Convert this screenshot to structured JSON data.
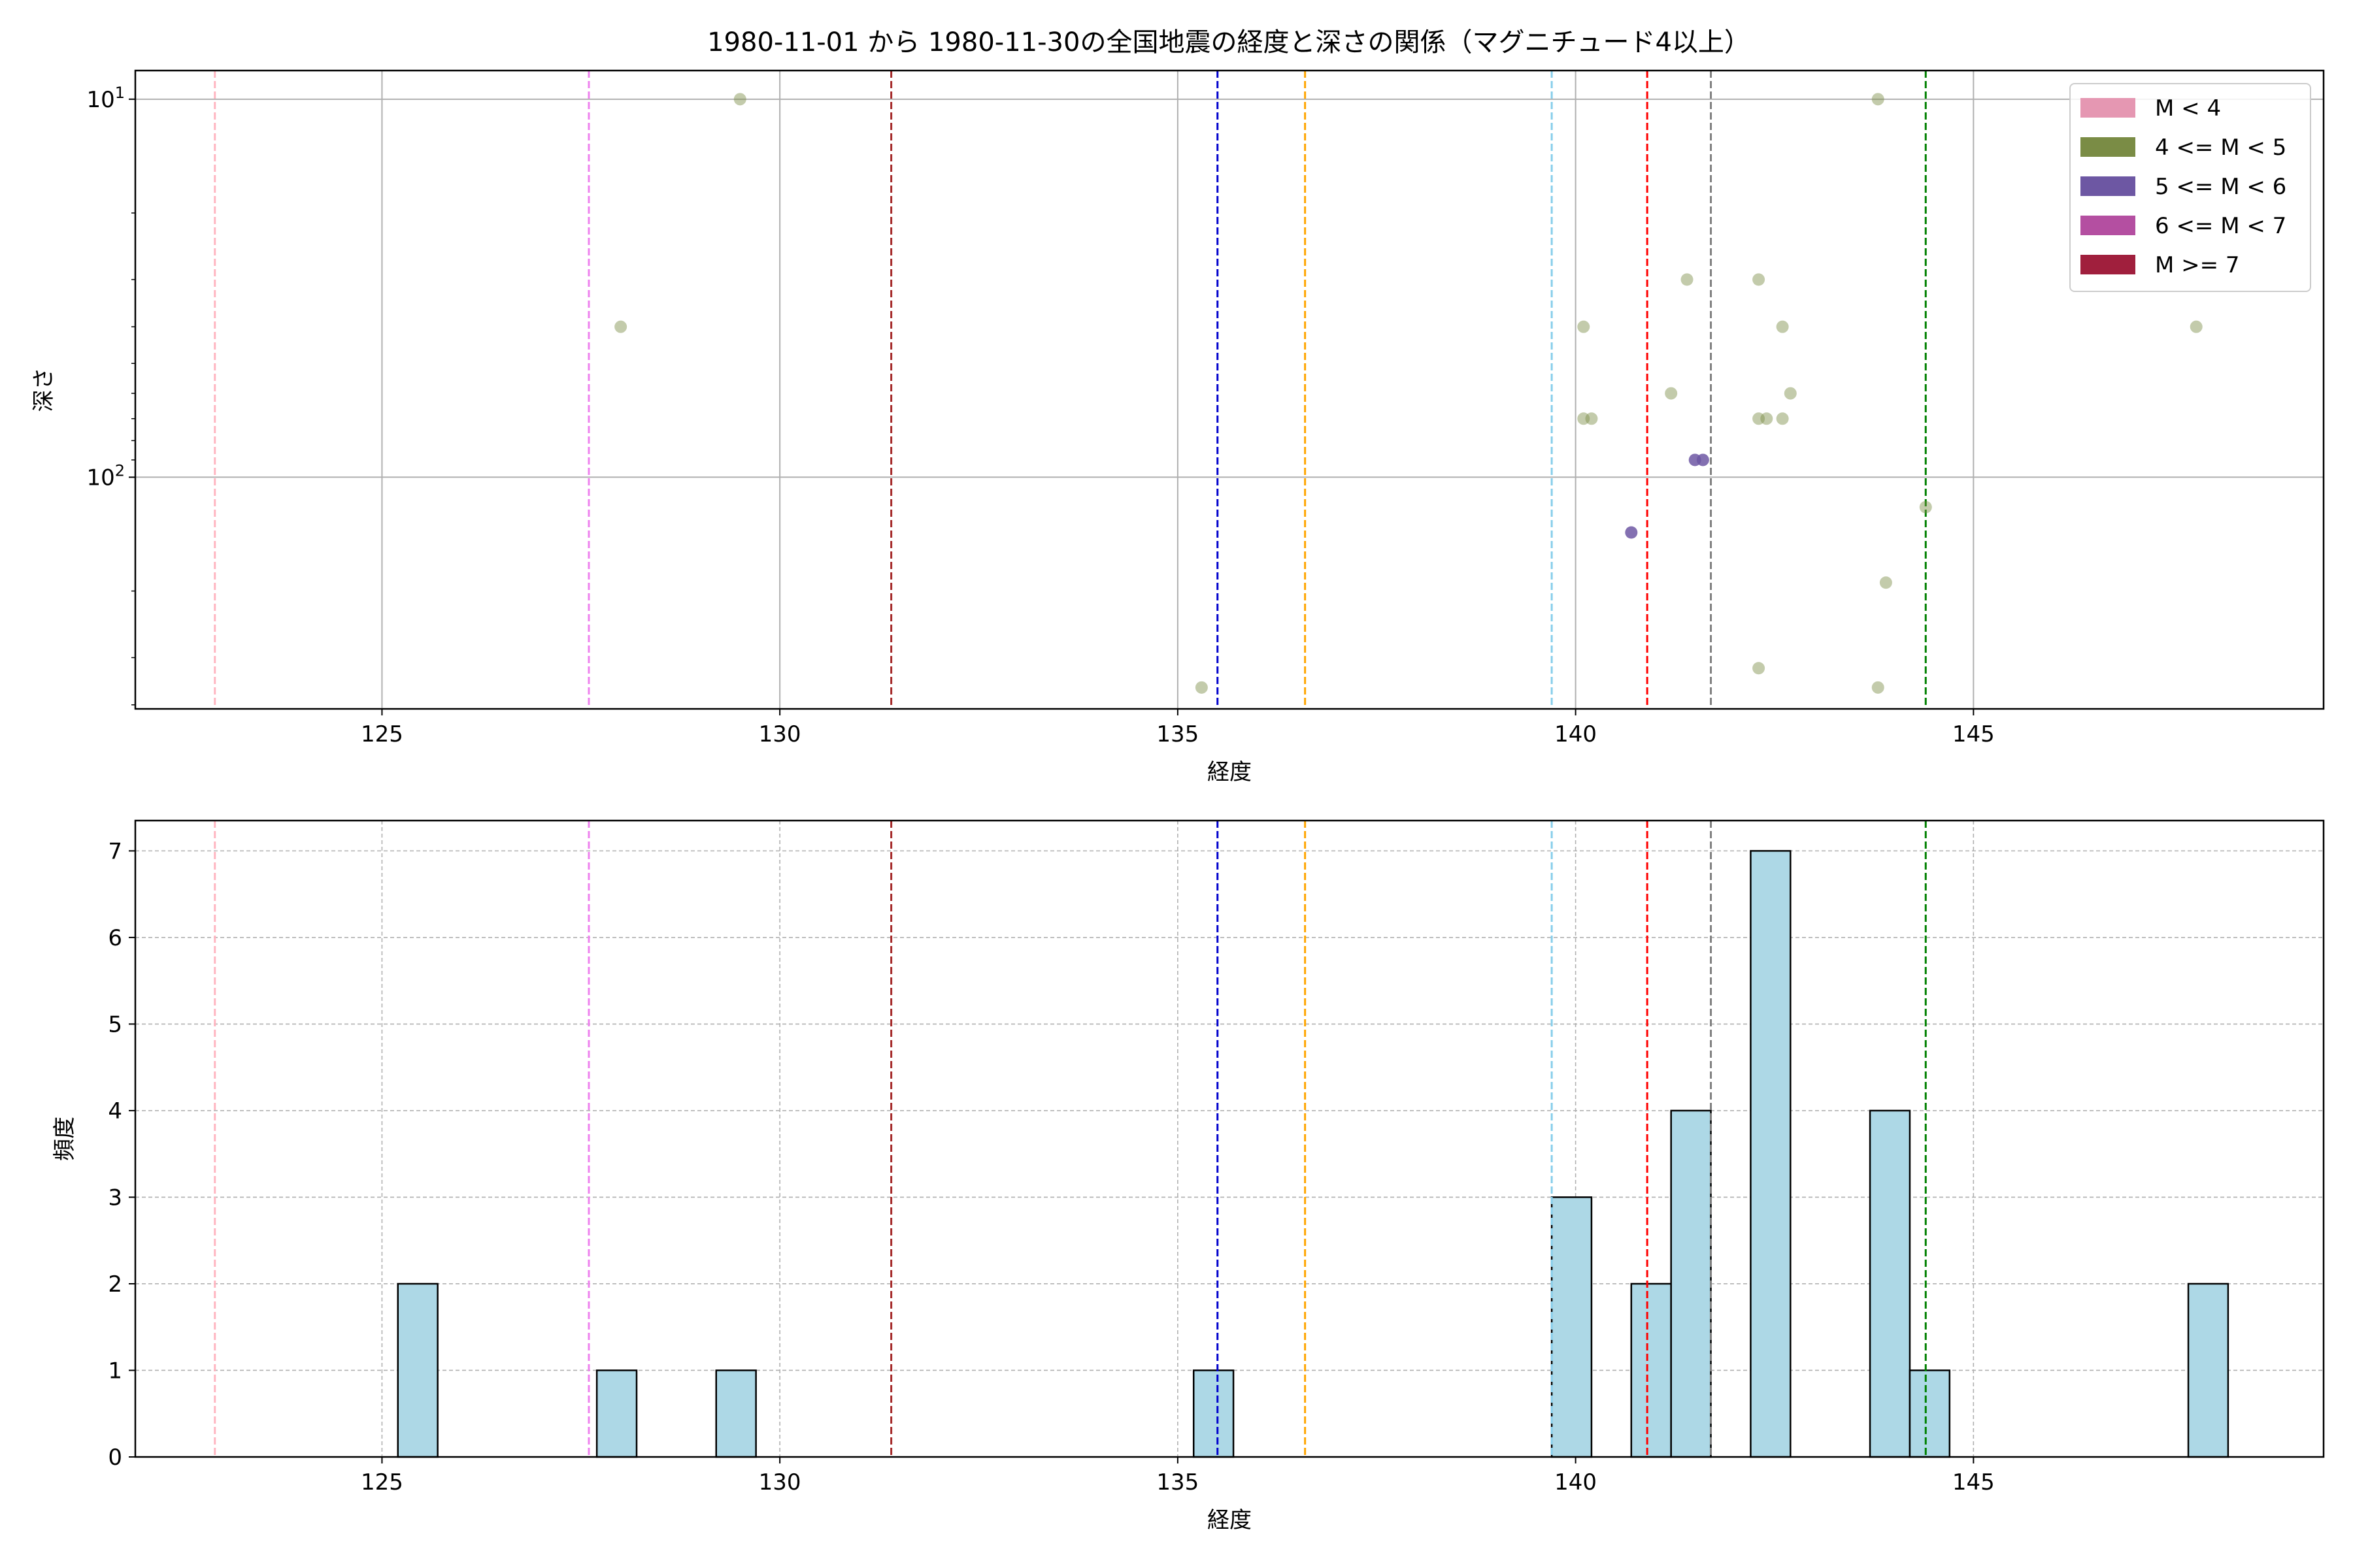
{
  "figure": {
    "title": "1980-11-01 から 1980-11-30の全国地震の経度と深さの関係（マグニチュード4以上）"
  },
  "colors": {
    "point_m4_5": "#7a8c45",
    "point_m5_6": "#6d57a3",
    "hist_fill": "#add8e6",
    "hist_edge": "#000000",
    "grid": "#b0b0b0"
  },
  "chart_data": [
    {
      "type": "scatter",
      "xlabel": "経度",
      "ylabel": "深さ",
      "xlim": [
        121.9,
        149.4
      ],
      "ylim": [
        410,
        8.4
      ],
      "y_scale": "log",
      "y_inverted": true,
      "grid": true,
      "xticks": [
        125,
        130,
        135,
        140,
        145
      ],
      "yticks": [
        {
          "value": 10,
          "base": "10",
          "exp": "1"
        },
        {
          "value": 100,
          "base": "10",
          "exp": "2"
        }
      ],
      "legend": {
        "position": "top-right",
        "entries": [
          {
            "label": "M < 4",
            "color": "#e597b2"
          },
          {
            "label": "4 <= M < 5",
            "color": "#7a8c45"
          },
          {
            "label": "5 <= M < 6",
            "color": "#6d57a3"
          },
          {
            "label": "6 <= M < 7",
            "color": "#b44fa1"
          },
          {
            "label": "M >= 7",
            "color": "#a01f3d"
          }
        ]
      },
      "series": [
        {
          "name": "4 <= M < 5",
          "color": "#7a8c45",
          "points": [
            {
              "x": 129.5,
              "y": 10
            },
            {
              "x": 143.8,
              "y": 10
            },
            {
              "x": 128.0,
              "y": 40
            },
            {
              "x": 140.1,
              "y": 40
            },
            {
              "x": 142.6,
              "y": 40
            },
            {
              "x": 147.8,
              "y": 40
            },
            {
              "x": 141.4,
              "y": 30
            },
            {
              "x": 142.3,
              "y": 30
            },
            {
              "x": 141.2,
              "y": 60
            },
            {
              "x": 142.7,
              "y": 60
            },
            {
              "x": 140.1,
              "y": 70
            },
            {
              "x": 140.2,
              "y": 70
            },
            {
              "x": 142.3,
              "y": 70
            },
            {
              "x": 142.4,
              "y": 70
            },
            {
              "x": 142.6,
              "y": 70
            },
            {
              "x": 144.4,
              "y": 120
            },
            {
              "x": 143.9,
              "y": 190
            },
            {
              "x": 135.3,
              "y": 360
            },
            {
              "x": 142.3,
              "y": 320
            },
            {
              "x": 143.8,
              "y": 360
            }
          ]
        },
        {
          "name": "5 <= M < 6",
          "color": "#6d57a3",
          "points": [
            {
              "x": 141.5,
              "y": 90
            },
            {
              "x": 141.6,
              "y": 90
            },
            {
              "x": 140.7,
              "y": 140
            }
          ]
        }
      ],
      "reference_lines": [
        {
          "x": 122.9,
          "color": "#ffb6c1"
        },
        {
          "x": 127.6,
          "color": "#ee82ee"
        },
        {
          "x": 131.4,
          "color": "#a52a2a"
        },
        {
          "x": 135.5,
          "color": "#0000cd"
        },
        {
          "x": 136.6,
          "color": "#ffa500"
        },
        {
          "x": 139.7,
          "color": "#87ceeb"
        },
        {
          "x": 140.9,
          "color": "#ff0000"
        },
        {
          "x": 141.7,
          "color": "#808080"
        },
        {
          "x": 144.4,
          "color": "#008000"
        }
      ]
    },
    {
      "type": "bar",
      "xlabel": "経度",
      "ylabel": "頻度",
      "xlim": [
        121.9,
        149.4
      ],
      "ylim": [
        0,
        7.35
      ],
      "grid": true,
      "xticks": [
        125,
        130,
        135,
        140,
        145
      ],
      "yticks": [
        0,
        1,
        2,
        3,
        4,
        5,
        6,
        7
      ],
      "bin_width": 0.5,
      "bins": [
        {
          "x": 125.2,
          "value": 2
        },
        {
          "x": 127.7,
          "value": 1
        },
        {
          "x": 129.2,
          "value": 1
        },
        {
          "x": 135.2,
          "value": 1
        },
        {
          "x": 139.7,
          "value": 3
        },
        {
          "x": 140.7,
          "value": 2
        },
        {
          "x": 141.2,
          "value": 4
        },
        {
          "x": 142.2,
          "value": 7
        },
        {
          "x": 143.7,
          "value": 4
        },
        {
          "x": 144.2,
          "value": 1
        },
        {
          "x": 147.7,
          "value": 2
        }
      ],
      "reference_lines": [
        {
          "x": 122.9,
          "color": "#ffb6c1"
        },
        {
          "x": 127.6,
          "color": "#ee82ee"
        },
        {
          "x": 131.4,
          "color": "#a52a2a"
        },
        {
          "x": 135.5,
          "color": "#0000cd"
        },
        {
          "x": 136.6,
          "color": "#ffa500"
        },
        {
          "x": 139.7,
          "color": "#87ceeb"
        },
        {
          "x": 140.9,
          "color": "#ff0000"
        },
        {
          "x": 141.7,
          "color": "#808080"
        },
        {
          "x": 144.4,
          "color": "#008000"
        }
      ]
    }
  ]
}
